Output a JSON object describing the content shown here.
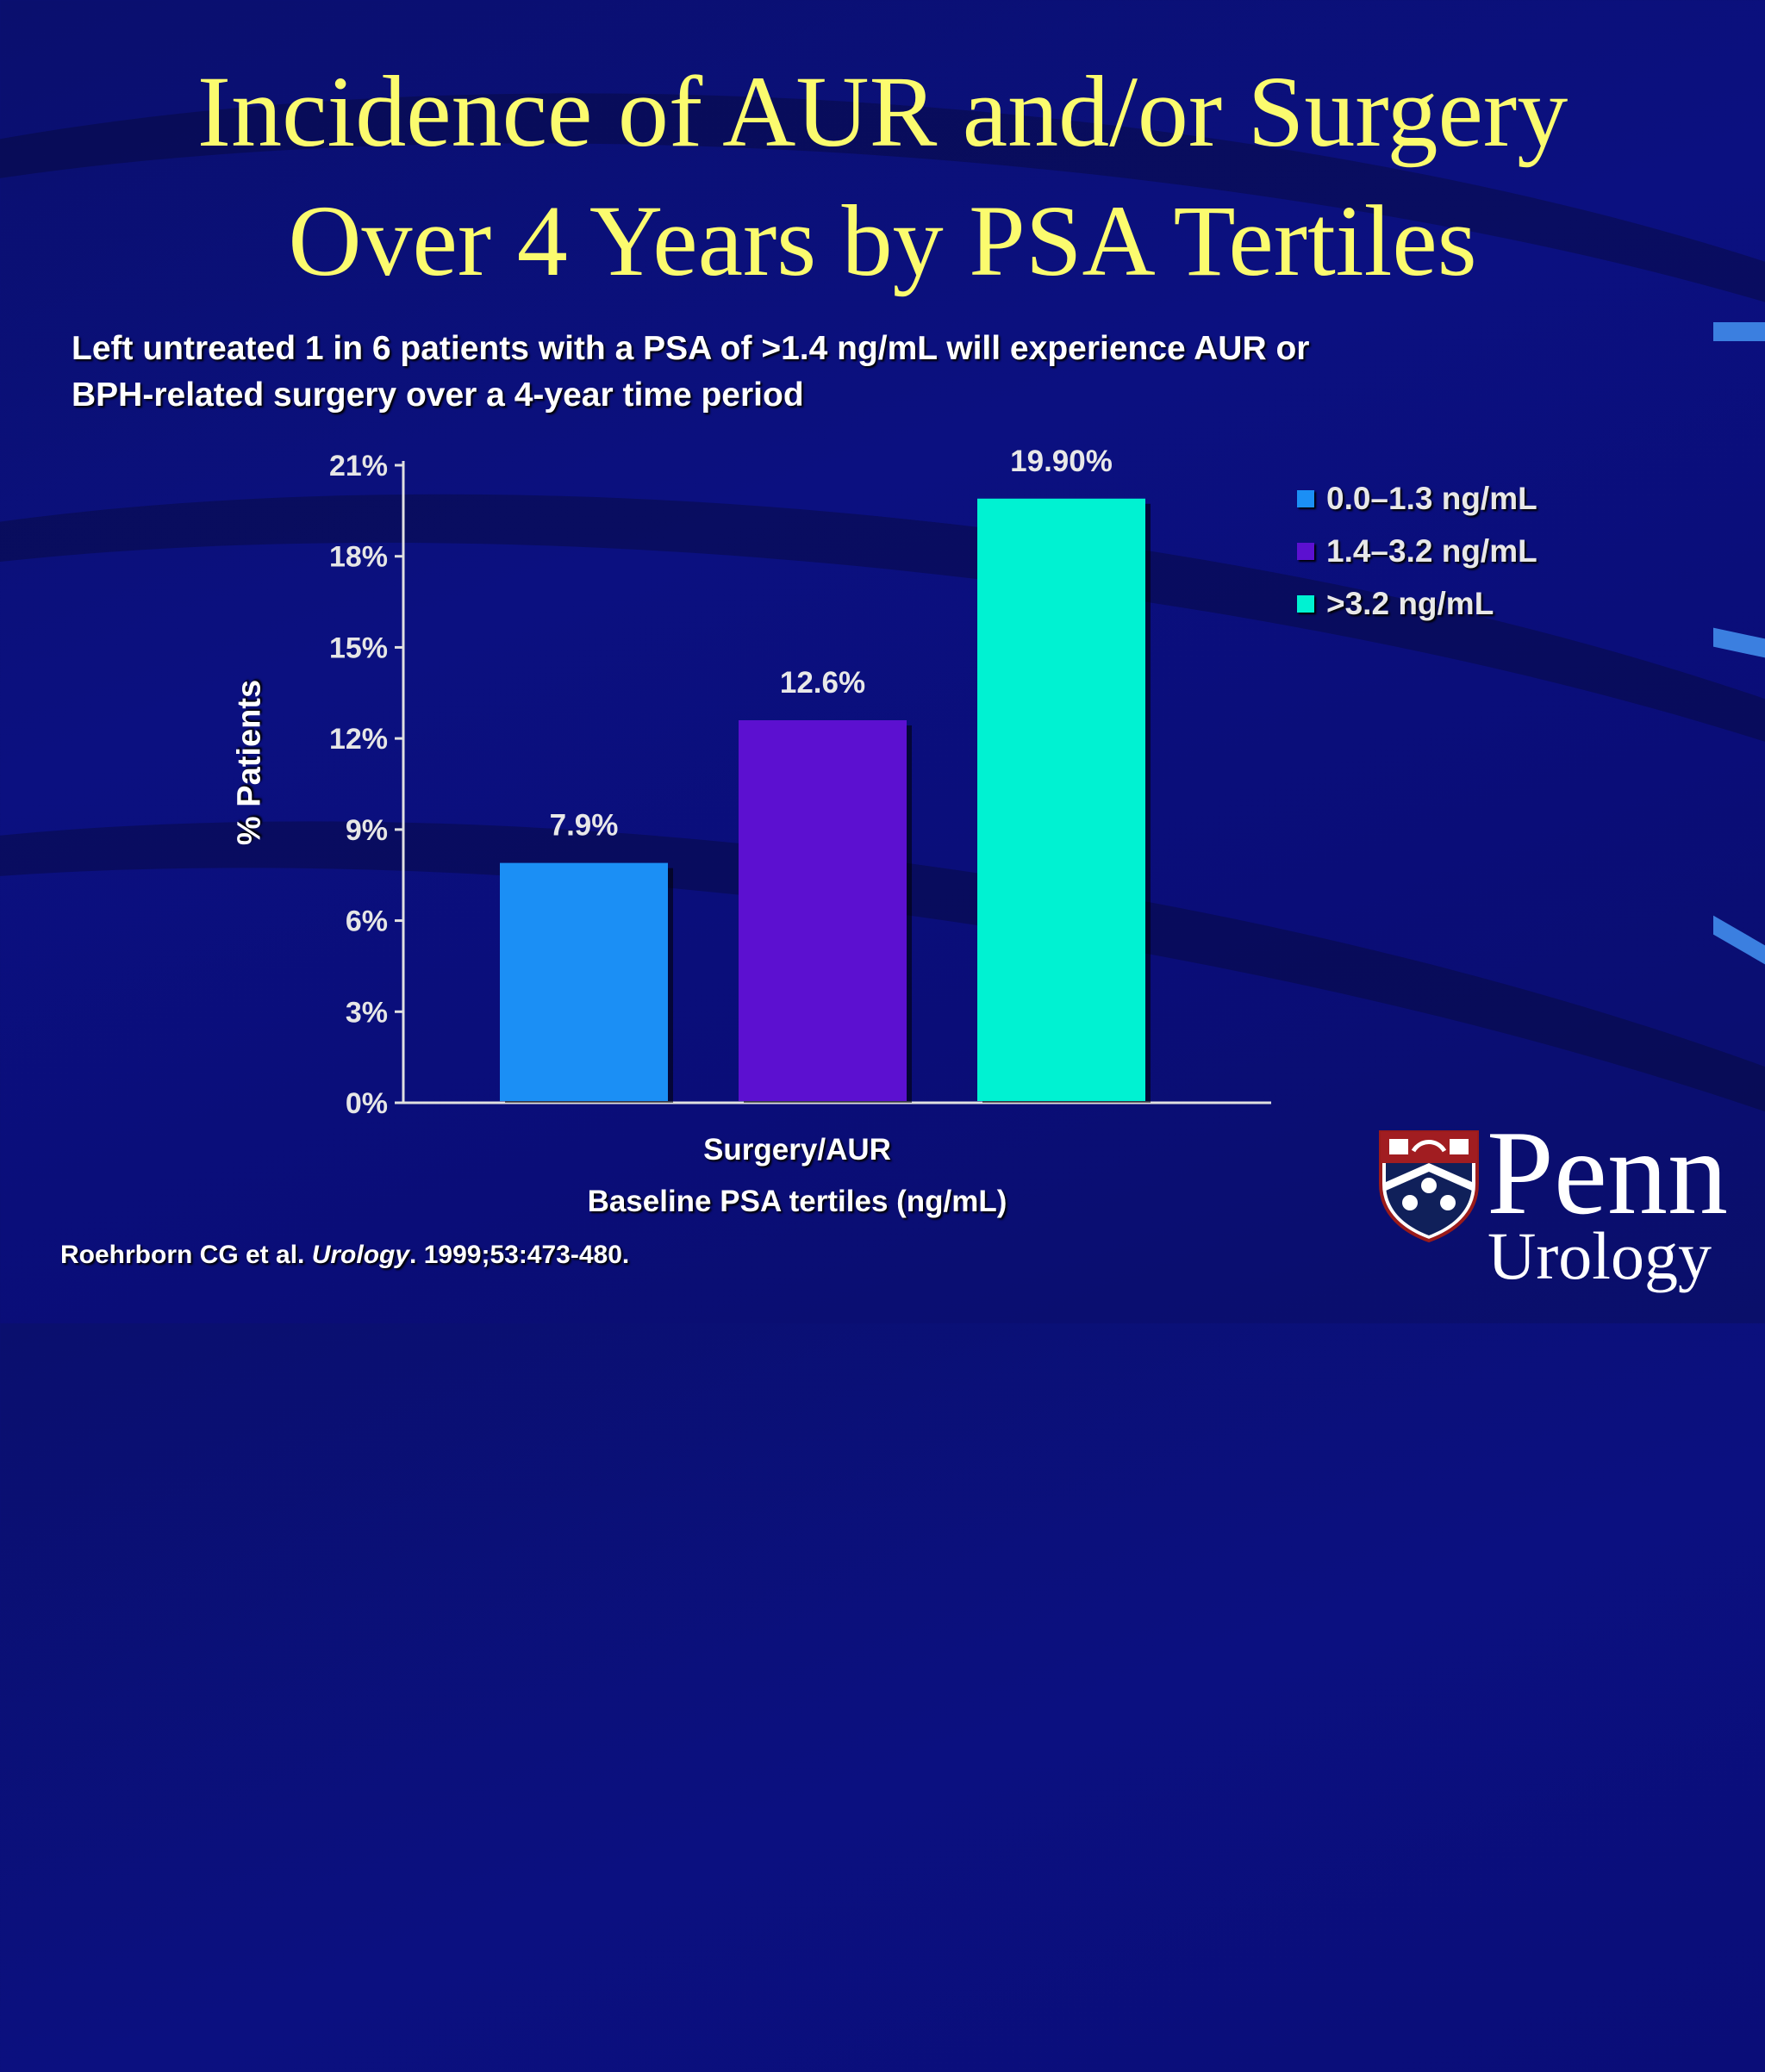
{
  "slide": {
    "title_line1": "Incidence of AUR and/or Surgery",
    "title_line2": "Over 4 Years by PSA Tertiles",
    "subtitle_line1": "Left untreated 1 in 6 patients with a PSA of >1.4 ng/mL will experience AUR or",
    "subtitle_line2": "BPH-related surgery over a 4-year time period",
    "citation_authors": "Roehrborn CG et al. ",
    "citation_journal": "Urology",
    "citation_rest": ". 1999;53:473-480.",
    "logo": {
      "name": "Penn",
      "department": "Urology"
    }
  },
  "chart_data": {
    "type": "bar",
    "categories": [
      "Surgery/AUR"
    ],
    "series": [
      {
        "name": "0.0–1.3 ng/mL",
        "values": [
          7.9
        ],
        "label": "7.9%",
        "color": "#1b8ff5"
      },
      {
        "name": "1.4–3.2 ng/mL",
        "values": [
          12.6
        ],
        "label": "12.6%",
        "color": "#5c10d0"
      },
      {
        "name": ">3.2 ng/mL",
        "values": [
          19.9
        ],
        "label": "19.90%",
        "color": "#00f2d2"
      }
    ],
    "ylabel": "% Patients",
    "xlabel": "Baseline PSA tertiles (ng/mL)",
    "ylim": [
      0,
      21
    ],
    "yticks": [
      "0%",
      "3%",
      "6%",
      "9%",
      "12%",
      "15%",
      "18%",
      "21%"
    ],
    "grid": false,
    "legend_position": "top-right"
  }
}
